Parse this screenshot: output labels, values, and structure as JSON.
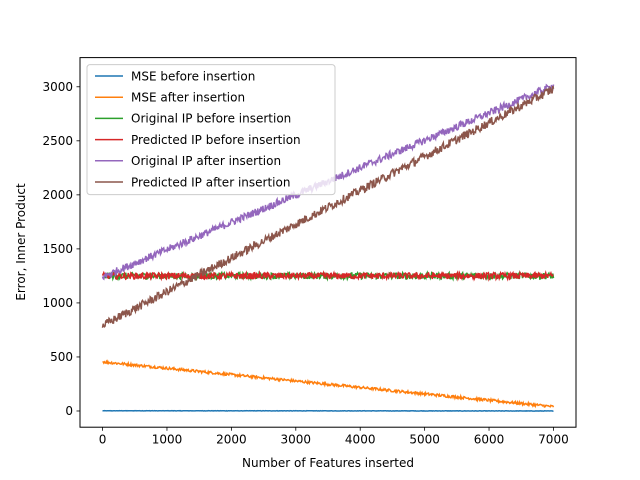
{
  "chart_data": {
    "type": "line",
    "title": "",
    "xlabel": "Number of Features inserted",
    "ylabel": "Error, Inner Product",
    "xlim": [
      -350,
      7350
    ],
    "ylim": [
      -150,
      3270
    ],
    "xticks": [
      0,
      1000,
      2000,
      3000,
      4000,
      5000,
      6000,
      7000
    ],
    "yticks": [
      0,
      500,
      1000,
      1500,
      2000,
      2500,
      3000
    ],
    "grid": false,
    "legend_position": "top-left",
    "series": [
      {
        "name": "MSE before insertion",
        "color": "#1f77b4",
        "start": 2,
        "end": 0,
        "noise": 1.5
      },
      {
        "name": "MSE after insertion",
        "color": "#ff7f0e",
        "start": 455,
        "end": 40,
        "noise": 12
      },
      {
        "name": "Original IP before insertion",
        "color": "#2ca02c",
        "start": 1250,
        "end": 1250,
        "noise": 30
      },
      {
        "name": "Predicted IP before insertion",
        "color": "#d62728",
        "start": 1250,
        "end": 1250,
        "noise": 30
      },
      {
        "name": "Original IP after insertion",
        "color": "#9467bd",
        "start": 1240,
        "end": 3010,
        "noise": 35
      },
      {
        "name": "Predicted IP after insertion",
        "color": "#8c564b",
        "start": 790,
        "end": 2980,
        "noise": 40
      }
    ]
  }
}
